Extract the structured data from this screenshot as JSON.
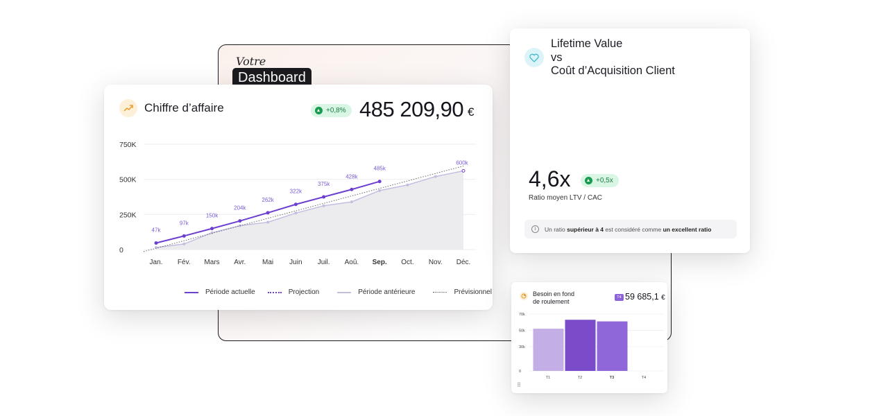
{
  "background": {
    "votre": "Votre",
    "dashboard": "Dashboard"
  },
  "revenue_card": {
    "title": "Chiffre d’affaire",
    "icon": "trend-up-icon",
    "badge": "+0,8%",
    "value": "485 209,90",
    "currency": "€",
    "legend": [
      "Période actuelle",
      "Projection",
      "Période antérieure",
      "Prévisionnel"
    ],
    "colors": {
      "current": "#6c3fd0",
      "previous": "#c5bde0",
      "area": "#ececef",
      "forecast": "#666666"
    }
  },
  "chart_data": [
    {
      "type": "line",
      "categories": [
        "Jan.",
        "Fév.",
        "Mars",
        "Avr.",
        "Mai",
        "Juin",
        "Juil.",
        "Aoû.",
        "Sep.",
        "Oct.",
        "Nov.",
        "Déc."
      ],
      "highlighted_category": "Sep.",
      "y_ticks": [
        "750K",
        "500K",
        "250K",
        "0"
      ],
      "ylim": [
        0,
        750
      ],
      "series": [
        {
          "name": "Période actuelle",
          "values": [
            47,
            97,
            150,
            204,
            262,
            322,
            375,
            428,
            485,
            null,
            null,
            null
          ],
          "labels": [
            "47k",
            "97k",
            "150k",
            "204k",
            "262k",
            "322k",
            "375k",
            "428k",
            "485k",
            "",
            "",
            ""
          ]
        },
        {
          "name": "Projection",
          "values": [
            null,
            null,
            null,
            null,
            null,
            null,
            null,
            null,
            null,
            null,
            null,
            600
          ],
          "labels": [
            "",
            "",
            "",
            "",
            "",
            "",
            "",
            "",
            "",
            "",
            "",
            "600k"
          ]
        },
        {
          "name": "Période antérieure",
          "values": [
            15,
            40,
            120,
            170,
            195,
            260,
            312,
            340,
            420,
            460,
            520,
            560
          ]
        },
        {
          "name": "Prévisionnel",
          "values": [
            55,
            105,
            165,
            218,
            272,
            330,
            385,
            440,
            495,
            530,
            560,
            595
          ]
        }
      ],
      "legend_position": "bottom-right",
      "grid": true
    },
    {
      "type": "bar",
      "categories": [
        "T1",
        "T2",
        "T3",
        "T4"
      ],
      "highlighted_category": "T3",
      "y_ticks": [
        "70k",
        "50k",
        "30k",
        "0"
      ],
      "ylim": [
        0,
        70
      ],
      "values": [
        52,
        63,
        61,
        null
      ],
      "colors": [
        "#c3aee6",
        "#7a4cc9",
        "#8f67d9"
      ]
    }
  ],
  "ltv_card": {
    "icon": "heart-icon",
    "title_lines": [
      "Lifetime Value",
      "vs",
      "Coût d’Acquisition Client"
    ],
    "value": "4,6x",
    "badge": "+0,5x",
    "subtitle": "Ratio moyen LTV / CAC",
    "info_prefix": "Un ratio ",
    "info_strong1": "supérieur à 4",
    "info_middle": " est considéré comme ",
    "info_strong2": "un excellent ratio"
  },
  "bfr_card": {
    "icon": "pie-icon",
    "title_lines": [
      "Besoin en fond",
      "de roulement"
    ],
    "tag": "T4",
    "value": "59 685,1",
    "currency": "€",
    "grip_icon": "drag-handle-icon"
  }
}
